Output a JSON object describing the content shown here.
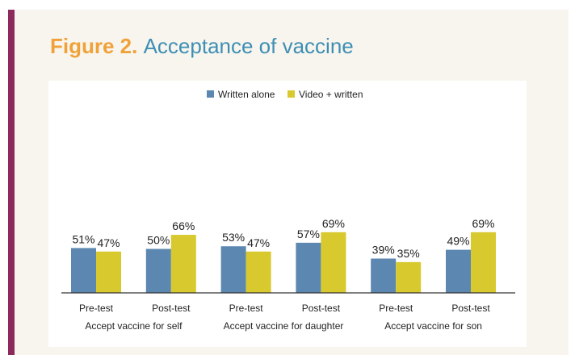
{
  "figure": {
    "label": "Figure 2.",
    "title": "Acceptance of vaccine"
  },
  "colors": {
    "accent_bar": "#8c2a5c",
    "figure_label": "#f0a23a",
    "figure_title": "#3e8fb4",
    "written_alone": "#5b87b0",
    "video_written": "#d8c92e"
  },
  "chart_data": {
    "type": "bar",
    "title": "Acceptance of vaccine",
    "legend_position": "top-center",
    "grid": false,
    "ylim": [
      0,
      100
    ],
    "value_suffix": "%",
    "categories": [
      "Pre-test",
      "Post-test",
      "Pre-test",
      "Post-test",
      "Pre-test",
      "Post-test"
    ],
    "groups": [
      {
        "label": "Accept vaccine for self",
        "categories": [
          0,
          1
        ]
      },
      {
        "label": "Accept vaccine for daughter",
        "categories": [
          2,
          3
        ]
      },
      {
        "label": "Accept vaccine for son",
        "categories": [
          4,
          5
        ]
      }
    ],
    "series": [
      {
        "name": "Written alone",
        "values": [
          51,
          50,
          53,
          57,
          39,
          49
        ],
        "labels": [
          "51%",
          "50%",
          "53%",
          "57%",
          "39%",
          "49%"
        ]
      },
      {
        "name": "Video + written",
        "values": [
          47,
          66,
          47,
          69,
          35,
          69
        ],
        "labels": [
          "47%",
          "66%",
          "47%",
          "69%",
          "35%",
          "69%"
        ]
      }
    ]
  }
}
